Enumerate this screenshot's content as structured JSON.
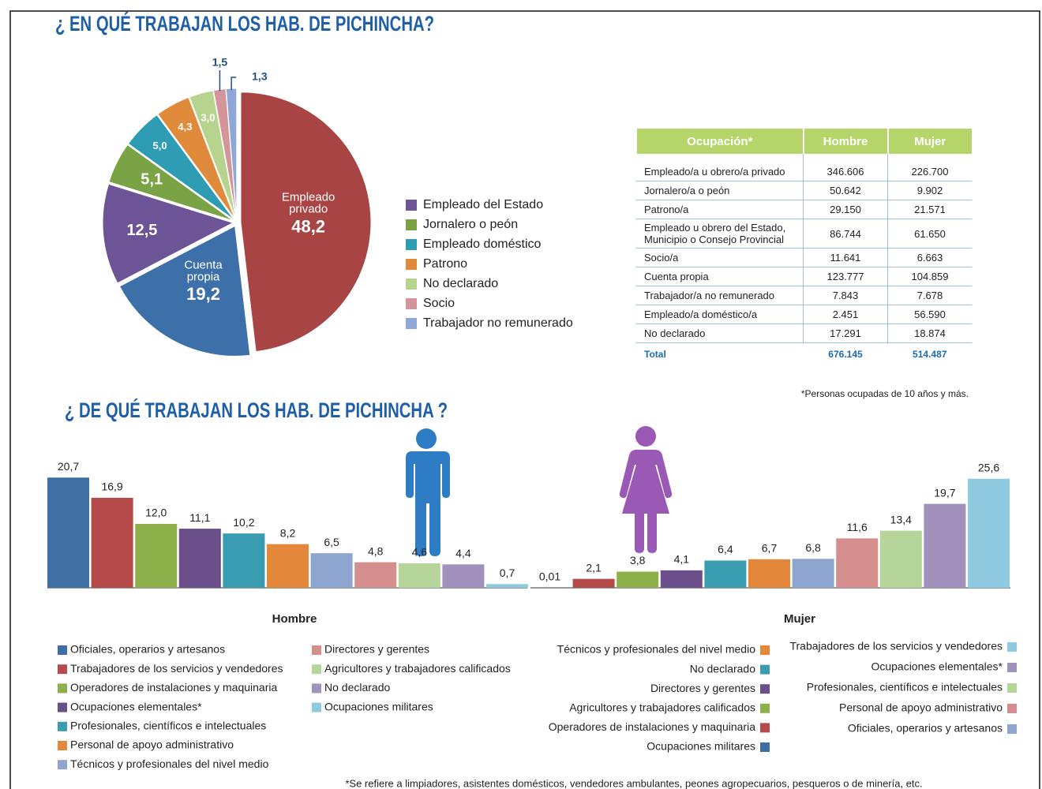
{
  "title": "¿ EN QUÉ TRABAJAN LOS HAB. DE PICHINCHA?",
  "subtitle": "¿ DE QUÉ TRABAJAN LOS HAB. DE PICHINCHA ?",
  "chart_data": [
    {
      "type": "pie",
      "categories": [
        "Empleado privado",
        "Cuenta propia",
        "Empleado del Estado",
        "Jornalero o peón",
        "Empleado doméstico",
        "Patrono",
        "No declarado",
        "Socio",
        "Trabajador no remunerado"
      ],
      "values": [
        48.2,
        19.2,
        12.5,
        5.1,
        5.0,
        4.3,
        3.0,
        1.5,
        1.3
      ],
      "value_labels": [
        "48,2",
        "19,2",
        "12,5",
        "5,1",
        "5,0",
        "4,3",
        "3,0",
        "1,5",
        "1,3"
      ],
      "colors": [
        "#a84444",
        "#3d6fa8",
        "#6d5496",
        "#7aa346",
        "#2e9db3",
        "#e08a3c",
        "#b7d48f",
        "#d4959a",
        "#8ea7d6"
      ]
    },
    {
      "type": "bar",
      "title": "Hombre",
      "categories": [
        "Oficiales, operarios y artesanos",
        "Trabajadores de los servicios y vendedores",
        "Operadores de instalaciones y maquinaria",
        "Ocupaciones elementales*",
        "Profesionales, científicos e intelectuales",
        "Personal de apoyo administrativo",
        "Técnicos y profesionales del nivel medio",
        "Directores y gerentes",
        "Agricultores y trabajadores calificados",
        "No declarado",
        "Ocupaciones militares"
      ],
      "values": [
        20.7,
        16.9,
        12.0,
        11.1,
        10.2,
        8.2,
        6.5,
        4.8,
        4.6,
        4.4,
        0.7
      ],
      "value_labels": [
        "20,7",
        "16,9",
        "12,0",
        "11,1",
        "10,2",
        "8,2",
        "6,5",
        "4,8",
        "4,6",
        "4,4",
        "0,7"
      ],
      "colors": [
        "#3f6fa3",
        "#b44a4a",
        "#8db04a",
        "#6b4f8a",
        "#3a9cb0",
        "#e3873a",
        "#8ea6cf",
        "#d48e8e",
        "#b6d59a",
        "#a092bd",
        "#8fcbe0"
      ]
    },
    {
      "type": "bar",
      "title": "Mujer",
      "categories": [
        "Ocupaciones militares",
        "Operadores de instalaciones y maquinaria",
        "Agricultores y trabajadores calificados",
        "Directores y gerentes",
        "No declarado",
        "Técnicos y profesionales del nivel medio",
        "Oficiales, operarios y artesanos",
        "Personal de apoyo administrativo",
        "Profesionales, científicos e intelectuales",
        "Ocupaciones elementales*",
        "Trabajadores de los servicios y vendedores"
      ],
      "values": [
        0.01,
        2.1,
        3.8,
        4.1,
        6.4,
        6.7,
        6.8,
        11.6,
        13.4,
        19.7,
        25.6
      ],
      "value_labels": [
        "0,01",
        "2,1",
        "3,8",
        "4,1",
        "6,4",
        "6,7",
        "6,8",
        "11,6",
        "13,4",
        "19,7",
        "25,6"
      ],
      "colors": [
        "#3f6fa3",
        "#b44a4a",
        "#8db04a",
        "#6b4f8a",
        "#3a9cb0",
        "#e3873a",
        "#8ea6cf",
        "#d48e8e",
        "#b6d59a",
        "#a092bd",
        "#8fcbe0"
      ]
    }
  ],
  "table": {
    "header": [
      "Ocupación*",
      "Hombre",
      "Mujer"
    ],
    "rows": [
      [
        "Empleado/a u obrero/a privado",
        "346.606",
        "226.700"
      ],
      [
        "Jornalero/a o peón",
        "50.642",
        "9.902"
      ],
      [
        "Patrono/a",
        "29.150",
        "21.571"
      ],
      [
        "Empleado u obrero del Estado, Municipio o Consejo Provincial",
        "86.744",
        "61.650"
      ],
      [
        "Socio/a",
        "11.641",
        "6.663"
      ],
      [
        "Cuenta propia",
        "123.777",
        "104.859"
      ],
      [
        "Trabajador/a no remunerado",
        "7.843",
        "7.678"
      ],
      [
        "Empleado/a doméstico/a",
        "2.451",
        "56.590"
      ],
      [
        "No declarado",
        "17.291",
        "18.874"
      ]
    ],
    "total": [
      "Total",
      "676.145",
      "514.487"
    ]
  },
  "note": "*Personas ocupadas de 10 años y más.",
  "footnote": "*Se refiere a limpiadores, asistentes domésticos, vendedores ambulantes, peones agropecuarios, pesqueros o de minería, etc."
}
